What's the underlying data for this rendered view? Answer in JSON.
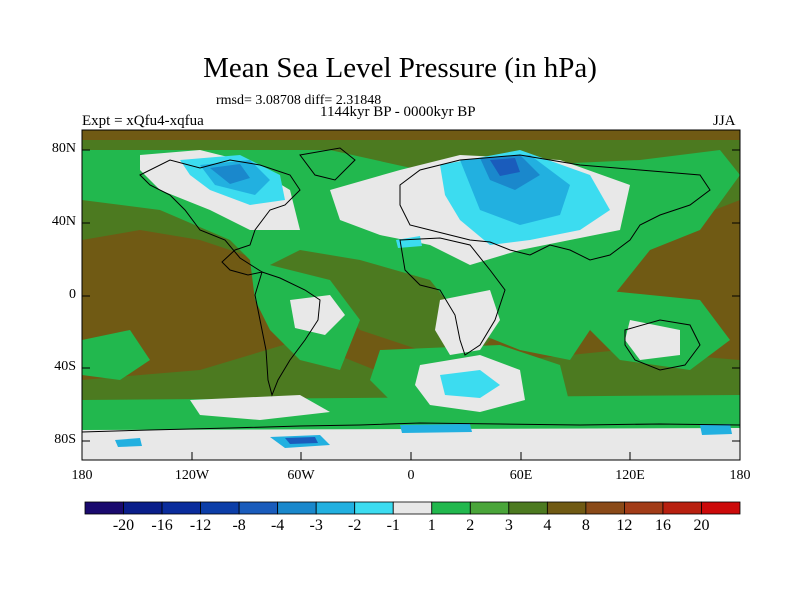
{
  "title": "Mean Sea Level Pressure (in hPa)",
  "stats": "rmsd= 3.08708 diff= 2.31848",
  "period": "1144kyr BP - 0000kyr BP",
  "experiment": "Expt = xQfu4-xqfua",
  "season": "JJA",
  "lat_labels": [
    "80N",
    "40N",
    "0",
    "40S",
    "80S"
  ],
  "lon_labels": [
    "180",
    "120W",
    "60W",
    "0",
    "60E",
    "120E",
    "180"
  ],
  "legend": {
    "labels": [
      "-20",
      "-16",
      "-12",
      "-8",
      "-4",
      "-3",
      "-2",
      "-1",
      "1",
      "2",
      "3",
      "4",
      "8",
      "12",
      "16",
      "20"
    ],
    "colors": [
      "#1a0a6e",
      "#0a1e8a",
      "#0a2c9c",
      "#0c3ea8",
      "#1a5cbc",
      "#1a88cc",
      "#22b0e0",
      "#3cdcf0",
      "#e8e8e8",
      "#22b84e",
      "#4aa53a",
      "#4c7a20",
      "#705a14",
      "#8a4a18",
      "#a23c18",
      "#b82010",
      "#cc0a0a"
    ]
  },
  "colors": {
    "green_light": "#22b84e",
    "green_mid": "#4aa53a",
    "green_dark": "#4c7a20",
    "brown": "#705a14",
    "brown_red": "#8a4a18",
    "white": "#e8e8e8",
    "cyan": "#3cdcf0",
    "blue_light": "#22b0e0",
    "blue_mid": "#1a88cc",
    "blue_dark": "#1a5cbc"
  }
}
